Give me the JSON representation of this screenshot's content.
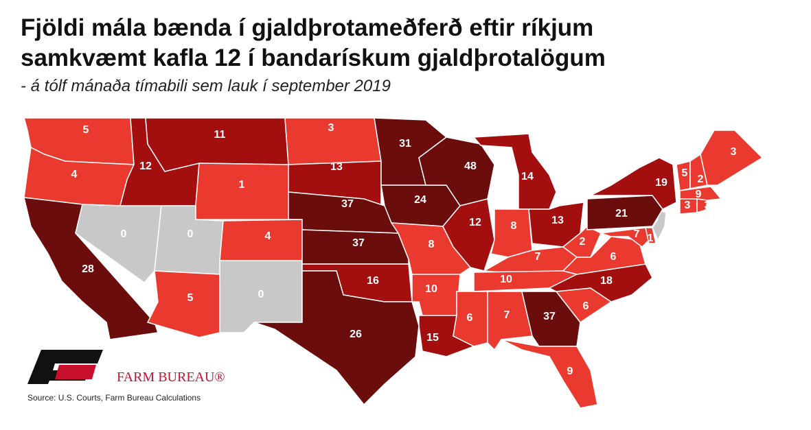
{
  "chart_data": {
    "type": "choropleth",
    "title": [
      "Fjöldi mála bænda í gjaldþrotameðferð eftir ríkjum",
      "samkvæmt kafla 12 í bandarískum gjaldþrotalögum"
    ],
    "subtitle": "- á tólf mánaða tímabili sem lauk í september 2019",
    "values": [
      5,
      4,
      28,
      0,
      12,
      11,
      1,
      0,
      5,
      4,
      0,
      3,
      13,
      37,
      37,
      16,
      26,
      31,
      24,
      8,
      10,
      15,
      48,
      12,
      14,
      8,
      13,
      7,
      10,
      6,
      7,
      37,
      9,
      6,
      18,
      6,
      2,
      21,
      7,
      1,
      19,
      5,
      2,
      3,
      9,
      3,
      3
    ],
    "colors": [
      "#ea3a2f",
      "#ea3a2f",
      "#6b0d0d",
      "#c8c8c8",
      "#a30f0f",
      "#a30f0f",
      "#ea3a2f",
      "#c8c8c8",
      "#ea3a2f",
      "#ea3a2f",
      "#c8c8c8",
      "#ea3a2f",
      "#a30f0f",
      "#6b0d0d",
      "#6b0d0d",
      "#a30f0f",
      "#6b0d0d",
      "#6b0d0d",
      "#6b0d0d",
      "#ea3a2f",
      "#ea3a2f",
      "#a30f0f",
      "#6b0d0d",
      "#a30f0f",
      "#a30f0f",
      "#ea3a2f",
      "#a30f0f",
      "#ea3a2f",
      "#ea3a2f",
      "#ea3a2f",
      "#ea3a2f",
      "#6b0d0d",
      "#ea3a2f",
      "#ea3a2f",
      "#a30f0f",
      "#ea3a2f",
      "#ea3a2f",
      "#6b0d0d",
      "#ea3a2f",
      "#ea3a2f",
      "#a30f0f",
      "#ea3a2f",
      "#ea3a2f",
      "#ea3a2f",
      "#ea3a2f",
      "#ea3a2f",
      "#ea3a2f"
    ],
    "logo_text": "FARM BUREAU®",
    "source": "Source: U.S. Courts, Farm Bureau Calculations"
  }
}
